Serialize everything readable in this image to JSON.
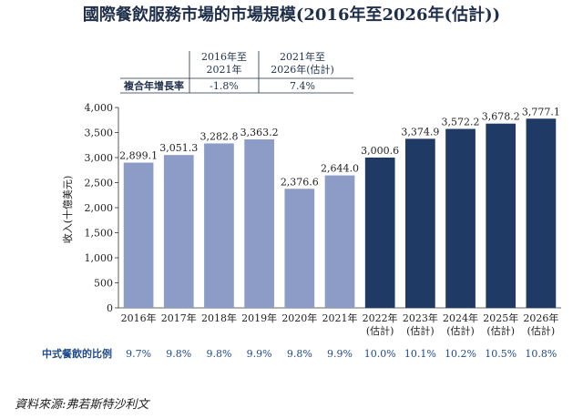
{
  "title": "國際餐飲服務市場的市場規模(2016年至2026年(估計))",
  "cagr": {
    "row_label": "複合年增長率",
    "periods": [
      {
        "header_line1": "2016年至",
        "header_line2": "2021年",
        "value": "-1.8%"
      },
      {
        "header_line1": "2021年至",
        "header_line2": "2026年(估計)",
        "value": "7.4%"
      }
    ]
  },
  "share_row": {
    "label": "中式餐飲的比例",
    "values": [
      "9.7%",
      "9.8%",
      "9.8%",
      "9.9%",
      "9.8%",
      "9.9%",
      "10.0%",
      "10.1%",
      "10.2%",
      "10.5%",
      "10.8%"
    ]
  },
  "source": "資料來源:弗若斯特沙利文",
  "colors": {
    "historical": "#8d9cc6",
    "forecast": "#1f3a64",
    "accent": "#1f4a8a"
  },
  "chart_data": {
    "type": "bar",
    "ylabel": "收入(十億美元)",
    "ylim": [
      0,
      4000
    ],
    "yticks": [
      "0",
      "500",
      "1,000",
      "1,500",
      "2,000",
      "2,500",
      "3,000",
      "3,500",
      "4,000"
    ],
    "categories": [
      {
        "line1": "2016年",
        "line2": ""
      },
      {
        "line1": "2017年",
        "line2": ""
      },
      {
        "line1": "2018年",
        "line2": ""
      },
      {
        "line1": "2019年",
        "line2": ""
      },
      {
        "line1": "2020年",
        "line2": ""
      },
      {
        "line1": "2021年",
        "line2": ""
      },
      {
        "line1": "2022年",
        "line2": "(估計)"
      },
      {
        "line1": "2023年",
        "line2": "(估計)"
      },
      {
        "line1": "2024年",
        "line2": "(估計)"
      },
      {
        "line1": "2025年",
        "line2": "(估計)"
      },
      {
        "line1": "2026年",
        "line2": "(估計)"
      }
    ],
    "values": [
      2899.1,
      3051.3,
      3282.8,
      3363.2,
      2376.6,
      2644.0,
      3000.6,
      3374.9,
      3572.2,
      3678.2,
      3777.1
    ],
    "value_labels": [
      "2,899.1",
      "3,051.3",
      "3,282.8",
      "3,363.2",
      "2,376.6",
      "2,644.0",
      "3,000.6",
      "3,374.9",
      "3,572.2",
      "3,678.2",
      "3,777.1"
    ],
    "forecast_flags": [
      false,
      false,
      false,
      false,
      false,
      false,
      true,
      true,
      true,
      true,
      true
    ]
  }
}
